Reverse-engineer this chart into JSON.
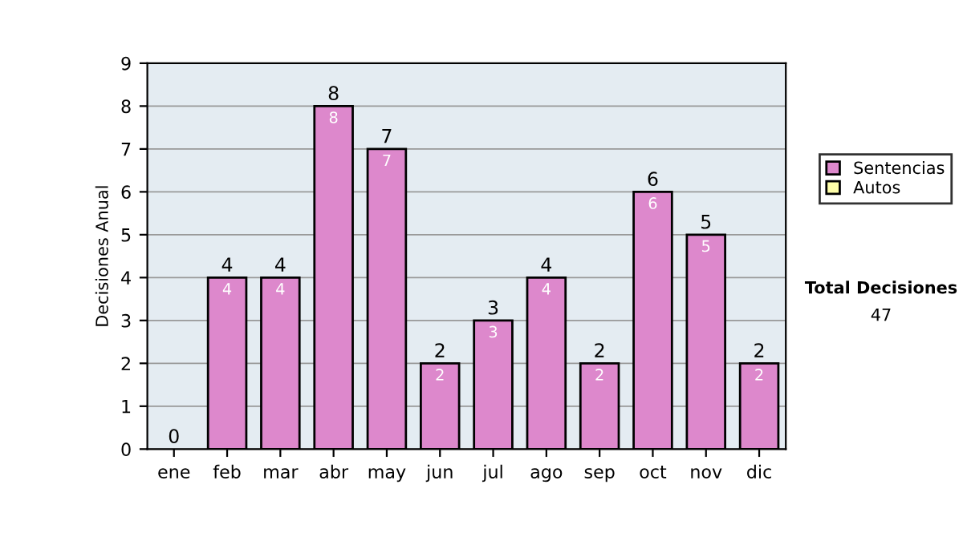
{
  "chart_data": {
    "type": "bar",
    "stacked": true,
    "ylabel": "Decisiones Anual",
    "categories": [
      "ene",
      "feb",
      "mar",
      "abr",
      "may",
      "jun",
      "jul",
      "ago",
      "sep",
      "oct",
      "nov",
      "dic"
    ],
    "series": [
      {
        "name": "Sentencias",
        "color": "#dd88cc",
        "values": [
          0,
          4,
          4,
          8,
          7,
          2,
          3,
          4,
          2,
          6,
          5,
          2
        ],
        "value_labels": [
          null,
          "4",
          "4",
          "8",
          "7",
          "2",
          "3",
          "4",
          "2",
          "6",
          "5",
          "2"
        ]
      },
      {
        "name": "Autos",
        "color": "#ffffaa",
        "values": [
          0,
          0,
          0,
          0,
          0,
          0,
          0,
          0,
          0,
          0,
          0,
          0
        ]
      }
    ],
    "totals": [
      "0",
      "4",
      "4",
      "8",
      "7",
      "2",
      "3",
      "4",
      "2",
      "6",
      "5",
      "2"
    ],
    "ylim": [
      0,
      9
    ],
    "yticks": [
      0,
      1,
      2,
      3,
      4,
      5,
      6,
      7,
      8,
      9
    ],
    "grid": "y",
    "legend": "right",
    "annotations": [
      "Total Decisiones",
      "47"
    ]
  }
}
